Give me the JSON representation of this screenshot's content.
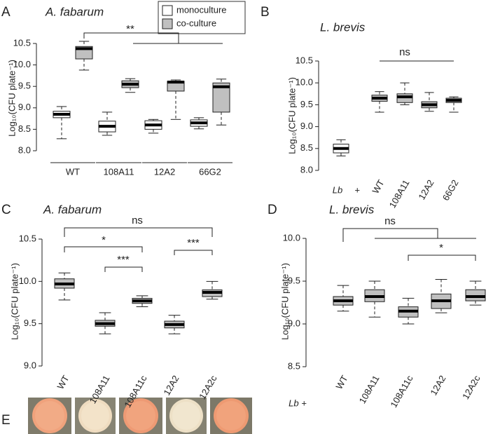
{
  "chart_data": [
    {
      "type": "box",
      "panel": "A",
      "title": "A. fabarum",
      "ylabel": "Log₁₀(CFU plate⁻¹)",
      "categories": [
        "WT",
        "108A11",
        "12A2",
        "66G2"
      ],
      "series": [
        {
          "name": "monoculture",
          "color": "#ffffff",
          "min": [
            8.28,
            8.36,
            8.41,
            8.51
          ],
          "q1": [
            8.77,
            8.44,
            8.5,
            8.57
          ],
          "median": [
            8.85,
            8.57,
            8.6,
            8.65
          ],
          "q3": [
            8.92,
            8.69,
            8.7,
            8.72
          ],
          "max": [
            9.03,
            8.9,
            8.73,
            8.77
          ]
        },
        {
          "name": "co-culture",
          "color": "#c0c0c0",
          "min": [
            9.88,
            9.36,
            8.73,
            8.6
          ],
          "q1": [
            10.14,
            9.47,
            9.39,
            8.9
          ],
          "median": [
            10.38,
            9.55,
            9.6,
            9.49
          ],
          "q3": [
            10.43,
            9.63,
            9.62,
            9.58
          ],
          "max": [
            10.55,
            9.68,
            9.65,
            9.67
          ]
        }
      ],
      "ylim": [
        8,
        10.5
      ],
      "yticks": [
        {
          "value": 8,
          "label": "8.0"
        },
        8.5,
        {
          "value": 9,
          "label": "9.0"
        },
        9.5,
        {
          "value": 10,
          "label": "10.0"
        },
        10.5
      ],
      "annotations": [
        "**"
      ]
    },
    {
      "type": "box",
      "panel": "B",
      "title": "L. brevis",
      "ylabel": "Log₁₀(CFU plate⁻¹)",
      "categories": [
        "Lb",
        "WT",
        "108A11",
        "12A2",
        "66G2"
      ],
      "x_prefix": "+",
      "series": [
        {
          "colors": [
            "#ffffff",
            "#c0c0c0",
            "#c0c0c0",
            "#c0c0c0",
            "#c0c0c0"
          ],
          "min": [
            8.33,
            9.33,
            9.5,
            9.35,
            9.33
          ],
          "q1": [
            8.4,
            9.58,
            9.55,
            9.43,
            9.55
          ],
          "median": [
            8.5,
            9.65,
            9.68,
            9.5,
            9.6
          ],
          "q3": [
            8.6,
            9.72,
            9.75,
            9.57,
            9.65
          ],
          "max": [
            8.7,
            9.8,
            10.0,
            9.78,
            9.68
          ]
        }
      ],
      "ylim": [
        8,
        10.5
      ],
      "yticks": [
        {
          "value": 8,
          "label": "8.0"
        },
        8.5,
        {
          "value": 9,
          "label": "9.0"
        },
        9.5,
        {
          "value": 10,
          "label": "10.0"
        },
        10.5
      ],
      "annotations": [
        "ns"
      ]
    },
    {
      "type": "box",
      "panel": "C",
      "title": "A. fabarum",
      "ylabel": "Log₁₀(CFU plate⁻¹)",
      "categories": [
        "WT",
        "108A11",
        "108A11c",
        "12A2",
        "12A2c"
      ],
      "series": [
        {
          "color": "#c0c0c0",
          "min": [
            9.78,
            9.38,
            9.7,
            9.38,
            9.79
          ],
          "q1": [
            9.92,
            9.47,
            9.74,
            9.45,
            9.82
          ],
          "median": [
            9.97,
            9.5,
            9.77,
            9.49,
            9.87
          ],
          "q3": [
            10.03,
            9.54,
            9.8,
            9.53,
            9.9
          ],
          "max": [
            10.1,
            9.63,
            9.83,
            9.6,
            10.0
          ]
        }
      ],
      "ylim": [
        9,
        10.5
      ],
      "yticks": [
        {
          "value": 9,
          "label": "9.0"
        },
        9.5,
        {
          "value": 10,
          "label": "10.0"
        },
        10.5
      ],
      "annotations": [
        "ns",
        "*",
        "***",
        "***"
      ]
    },
    {
      "type": "box",
      "panel": "D",
      "title": "L. brevis",
      "ylabel": "Log₁₀(CFU plate⁻¹)",
      "categories": [
        "WT",
        "108A11",
        "108A11c",
        "12A2",
        "12A2c"
      ],
      "x_prefix": "Lb +",
      "series": [
        {
          "color": "#c0c0c0",
          "min": [
            9.15,
            9.08,
            9.0,
            9.13,
            9.22
          ],
          "q1": [
            9.22,
            9.26,
            9.08,
            9.18,
            9.27
          ],
          "median": [
            9.27,
            9.32,
            9.15,
            9.27,
            9.32
          ],
          "q3": [
            9.32,
            9.4,
            9.2,
            9.35,
            9.4
          ],
          "max": [
            9.45,
            9.5,
            9.3,
            9.52,
            9.5
          ]
        }
      ],
      "ylim": [
        8.5,
        10
      ],
      "yticks": [
        8.5,
        {
          "value": 9,
          "label": "9.0"
        },
        9.5,
        {
          "value": 10,
          "label": "10.0"
        }
      ],
      "annotations": [
        "ns",
        "*"
      ]
    }
  ],
  "panel_e": {
    "label": "E"
  }
}
